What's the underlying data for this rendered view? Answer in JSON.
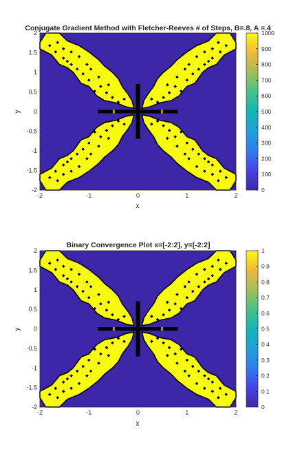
{
  "chart_data": [
    {
      "type": "heatmap",
      "title": "Conjugate Gradient Method with Fletcher-Reeves # of Steps, B=.8, A =.4",
      "xlabel": "x",
      "ylabel": "y",
      "xlim": [
        -2,
        2
      ],
      "ylim": [
        -2,
        2
      ],
      "x_ticks": [
        "-2",
        "-1",
        "0",
        "1",
        "2"
      ],
      "y_ticks": [
        "2",
        "1.5",
        "1",
        "0.5",
        "0",
        "-0.5",
        "-1",
        "-1.5",
        "-2"
      ],
      "colorbar": {
        "ticks": [
          "1000",
          "900",
          "800",
          "700",
          "600",
          "500",
          "400",
          "300",
          "200",
          "100",
          "0"
        ],
        "range": [
          0,
          1000
        ],
        "colormap": "parula"
      },
      "values_description": {
        "yellow_regions_value": 1000,
        "blue_regions_value": 0
      }
    },
    {
      "type": "heatmap",
      "title": "Binary Convergence Plot x=[-2:2], y=[-2:2]",
      "xlabel": "x",
      "ylabel": "y",
      "xlim": [
        -2,
        2
      ],
      "ylim": [
        -2,
        2
      ],
      "x_ticks": [
        "-2",
        "-1",
        "0",
        "1",
        "2"
      ],
      "y_ticks": [
        "2",
        "1.5",
        "1",
        "0.5",
        "0",
        "-0.5",
        "-1",
        "-1.5",
        "-2"
      ],
      "colorbar": {
        "ticks": [
          "1",
          "0.9",
          "0.8",
          "0.7",
          "0.6",
          "0.5",
          "0.4",
          "0.3",
          "0.2",
          "0.1",
          "0"
        ],
        "range": [
          0,
          1
        ],
        "colormap": "parula"
      },
      "values_description": {
        "yellow_regions_value": 1,
        "blue_regions_value": 0
      }
    }
  ],
  "colors": {
    "high": "#f9fb0e",
    "low": "#3e26a8",
    "boundary": "#000000"
  }
}
